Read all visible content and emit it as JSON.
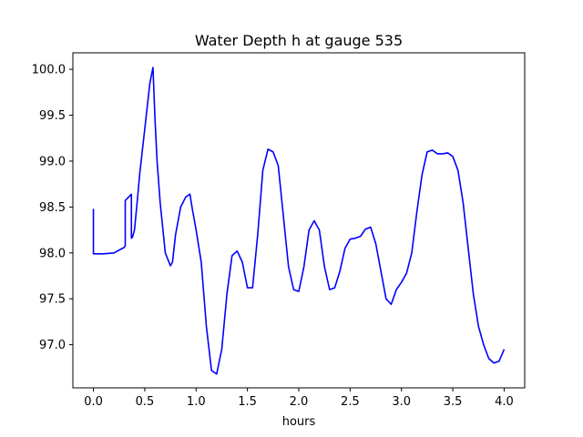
{
  "chart_data": {
    "type": "line",
    "title": "Water Depth h at gauge 535",
    "xlabel": "hours",
    "ylabel": "",
    "xlim": [
      -0.2,
      4.2
    ],
    "ylim": [
      96.53,
      100.18
    ],
    "xticks": [
      0.0,
      0.5,
      1.0,
      1.5,
      2.0,
      2.5,
      3.0,
      3.5,
      4.0
    ],
    "xtick_labels": [
      "0.0",
      "0.5",
      "1.0",
      "1.5",
      "2.0",
      "2.5",
      "3.0",
      "3.5",
      "4.0"
    ],
    "yticks": [
      97.0,
      97.5,
      98.0,
      98.5,
      99.0,
      99.5,
      100.0
    ],
    "ytick_labels": [
      "97.0",
      "97.5",
      "98.0",
      "98.5",
      "99.0",
      "99.5",
      "100.0"
    ],
    "grid": false,
    "series": [
      {
        "color": "#0000ff",
        "x": [
          0.0,
          0.0,
          0.1,
          0.2,
          0.3,
          0.31,
          0.31,
          0.37,
          0.37,
          0.37,
          0.38,
          0.4,
          0.43,
          0.45,
          0.5,
          0.55,
          0.58,
          0.6,
          0.62,
          0.65,
          0.7,
          0.75,
          0.77,
          0.8,
          0.85,
          0.9,
          0.94,
          0.96,
          1.0,
          1.05,
          1.1,
          1.15,
          1.2,
          1.25,
          1.3,
          1.35,
          1.4,
          1.45,
          1.5,
          1.55,
          1.6,
          1.65,
          1.7,
          1.75,
          1.8,
          1.85,
          1.9,
          1.95,
          2.0,
          2.05,
          2.1,
          2.15,
          2.2,
          2.25,
          2.3,
          2.35,
          2.4,
          2.45,
          2.5,
          2.55,
          2.6,
          2.65,
          2.7,
          2.75,
          2.8,
          2.85,
          2.9,
          2.95,
          3.0,
          3.05,
          3.1,
          3.15,
          3.2,
          3.25,
          3.3,
          3.35,
          3.4,
          3.45,
          3.5,
          3.55,
          3.6,
          3.65,
          3.7,
          3.75,
          3.8,
          3.85,
          3.9,
          3.95,
          4.0
        ],
        "y": [
          98.48,
          97.99,
          97.99,
          98.0,
          98.06,
          98.08,
          98.57,
          98.64,
          98.64,
          98.16,
          98.17,
          98.25,
          98.6,
          98.85,
          99.35,
          99.85,
          100.02,
          99.45,
          99.0,
          98.55,
          98.0,
          97.86,
          97.9,
          98.2,
          98.5,
          98.61,
          98.64,
          98.5,
          98.25,
          97.9,
          97.2,
          96.72,
          96.68,
          96.95,
          97.55,
          97.97,
          98.02,
          97.9,
          97.62,
          97.62,
          98.2,
          98.9,
          99.13,
          99.1,
          98.95,
          98.4,
          97.85,
          97.6,
          97.58,
          97.85,
          98.25,
          98.35,
          98.25,
          97.85,
          97.6,
          97.62,
          97.8,
          98.05,
          98.15,
          98.16,
          98.18,
          98.26,
          98.28,
          98.1,
          97.8,
          97.5,
          97.44,
          97.6,
          97.68,
          97.78,
          98.0,
          98.45,
          98.85,
          99.1,
          99.12,
          99.08,
          99.08,
          99.09,
          99.05,
          98.9,
          98.55,
          98.05,
          97.55,
          97.2,
          97.0,
          96.85,
          96.8,
          96.82,
          96.95
        ]
      }
    ]
  }
}
